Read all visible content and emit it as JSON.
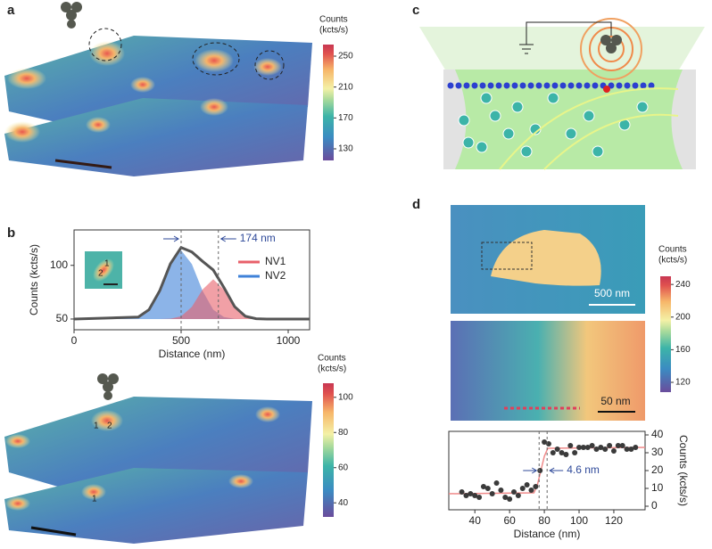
{
  "panel_labels": [
    "a",
    "b",
    "c",
    "d"
  ],
  "peak_labels": [
    "1",
    "2"
  ],
  "scale_labels": [
    "500 nm",
    "50 nm"
  ],
  "chart_data": [
    {
      "type": "line",
      "x": [
        0,
        300,
        350,
        400,
        450,
        500,
        550,
        600,
        650,
        700,
        750,
        800,
        850,
        900,
        1100
      ],
      "series": [
        {
          "color": "#555555",
          "values": [
            50,
            51.8,
            58.7,
            76.3,
            101.5,
            116.6,
            112.5,
            103.8,
            95.7,
            79.3,
            61.5,
            52.6,
            50.3,
            50,
            50
          ]
        },
        {
          "name": "NV1",
          "color": "#e8606a",
          "fill": true,
          "values": [
            50,
            50,
            50,
            50,
            50.3,
            52.6,
            61.3,
            77.5,
            87,
            77.5,
            61.3,
            52.6,
            50.3,
            50,
            50
          ]
        },
        {
          "name": "NV2",
          "color": "#3f82d8",
          "fill": true,
          "values": [
            50,
            51.8,
            58.7,
            76.3,
            101.2,
            114,
            101.2,
            76.3,
            58.7,
            51.8,
            50.2,
            50,
            50,
            50,
            50
          ]
        }
      ],
      "xlim": [
        0,
        1100
      ],
      "xticks": [
        0,
        500,
        1000
      ],
      "ylim": [
        40,
        133
      ],
      "yticks": [
        50,
        100
      ],
      "x_label": "Distance (nm)",
      "y_label": "Counts (kcts/s)",
      "y_axis_side": "left",
      "markers": [
        500,
        674
      ],
      "annotation": "174 nm"
    },
    {
      "type": "scatter",
      "series": [
        {
          "color": "#3a3a3a",
          "marker": "o",
          "x": [
            32.5,
            35,
            37.5,
            40,
            42.5,
            45,
            47.5,
            50,
            52.5,
            55,
            57.5,
            60,
            62.5,
            65,
            67.5,
            70,
            72.5,
            75,
            77.5,
            80,
            82.5,
            85,
            87.5,
            90,
            92.5,
            95,
            97.5,
            100,
            102.5,
            105,
            107.5,
            110,
            112.5,
            115,
            117.5,
            120,
            122.5,
            125,
            127.5,
            130,
            132.5
          ],
          "values": [
            8,
            6,
            7,
            6,
            5,
            11,
            10,
            7,
            13,
            9,
            5,
            4,
            8,
            6,
            10,
            12,
            9,
            11,
            20,
            36,
            35,
            30,
            32,
            30,
            29,
            34,
            30,
            33,
            33,
            33,
            34,
            32,
            33,
            32,
            34,
            31,
            34,
            34,
            32,
            32,
            33
          ]
        },
        {
          "color": "#f08a8a",
          "marker": "line",
          "x": [
            25,
            74,
            76,
            78,
            80,
            82,
            138
          ],
          "values": [
            7,
            7.5,
            12,
            20,
            28,
            32.5,
            33
          ]
        }
      ],
      "xlim": [
        25,
        138
      ],
      "xticks": [
        40,
        60,
        80,
        100,
        120
      ],
      "ylim": [
        -2,
        42
      ],
      "yticks": [
        0,
        10,
        20,
        30,
        40
      ],
      "x_label": "Distance (nm)",
      "y_label": "Counts (kcts/s)",
      "y_axis_side": "right",
      "markers": [
        77,
        81.6
      ],
      "annotation": "4.6 nm"
    },
    {
      "type": "colorbar",
      "title": [
        "Counts",
        "(kcts/s)"
      ],
      "ylim": [
        115,
        265
      ],
      "yticks": [
        130,
        170,
        210,
        250
      ]
    },
    {
      "type": "colorbar",
      "title": [
        "Counts",
        "(kcts/s)"
      ],
      "ylim": [
        32,
        108
      ],
      "yticks": [
        40,
        60,
        80,
        100
      ]
    },
    {
      "type": "colorbar",
      "title": [
        "Counts",
        "(kcts/s)"
      ],
      "ylim": [
        108,
        250
      ],
      "yticks": [
        120,
        160,
        200,
        240
      ]
    }
  ]
}
